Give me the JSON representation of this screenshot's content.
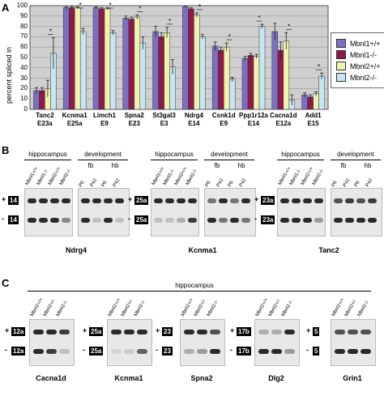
{
  "panel_labels": {
    "a": "A",
    "b": "B",
    "c": "C"
  },
  "chart_data": {
    "type": "bar",
    "ylabel": "percent spliced in",
    "ylim": [
      0,
      100
    ],
    "yticks": [
      "0",
      "10",
      "20",
      "30",
      "40",
      "50",
      "60",
      "70",
      "80",
      "90",
      "100"
    ],
    "categories": [
      "Tanc2 E23a",
      "Kcnma1 E25a",
      "Limch1 E9",
      "Spna2 E23",
      "St3gal3 E3",
      "Ndrg4 E14",
      "Csnk1d E9",
      "Ppp1r12a E14",
      "Cacna1d E12a",
      "Add1 E15"
    ],
    "category_lines": [
      [
        "Tanc2",
        "E23a"
      ],
      [
        "Kcnma1",
        "E25a"
      ],
      [
        "Limch1",
        "E9"
      ],
      [
        "Spna2",
        "E23"
      ],
      [
        "St3gal3",
        "E3"
      ],
      [
        "Ndrg4",
        "E14"
      ],
      [
        "Csnk1d",
        "E9"
      ],
      [
        "Ppp1r12a",
        "E14"
      ],
      [
        "Cacna1d",
        "E12a"
      ],
      [
        "Add1",
        "E15"
      ]
    ],
    "series": [
      {
        "name": "Mbnl1+/+",
        "color": "#7b6fc4",
        "values": [
          18,
          98,
          98,
          88,
          75,
          99,
          61,
          49,
          75,
          14
        ]
      },
      {
        "name": "Mbnl1-/-",
        "color": "#8e1a4a",
        "values": [
          18,
          98,
          97,
          87,
          70,
          97,
          57,
          52,
          57,
          12
        ]
      },
      {
        "name": "Mbnl2+/+",
        "color": "#f2f2b0",
        "values": [
          20,
          98,
          97,
          89,
          74,
          91,
          60,
          51,
          66,
          15
        ]
      },
      {
        "name": "Mbnl2-/-",
        "color": "#c7e6f2",
        "values": [
          54,
          75,
          74,
          64,
          41,
          70,
          29,
          80,
          9,
          32
        ]
      }
    ],
    "errors": [
      [
        3,
        1,
        1,
        2,
        5,
        1,
        4,
        2,
        8,
        2
      ],
      [
        3,
        1,
        1,
        2,
        4,
        1,
        3,
        2,
        8,
        2
      ],
      [
        8,
        1,
        1,
        2,
        5,
        2,
        4,
        2,
        8,
        2
      ],
      [
        15,
        3,
        2,
        6,
        7,
        2,
        2,
        2,
        5,
        3
      ]
    ],
    "significance": [
      "*",
      "*",
      "*",
      "*",
      "*",
      "*",
      "*",
      "*",
      "*",
      "*"
    ],
    "grid": true,
    "legend_position": "right"
  },
  "panel_b": {
    "blots": [
      {
        "gene": "Ndrg4",
        "top_label": "14",
        "bottom_label": "14",
        "hippo_header": "hippocampus",
        "dev_header": "development",
        "hippo_lanes": [
          "Mbnl1+/+",
          "Mbnl1-/-",
          "Mbnl2+/+",
          "Mbnl2-/-"
        ],
        "dev_groups": [
          "fb",
          "hb"
        ],
        "dev_lanes": [
          "P6",
          "P42",
          "P6",
          "P42"
        ]
      },
      {
        "gene": "Kcnma1",
        "top_label": "25a",
        "bottom_label": "25a",
        "hippo_header": "hippocampus",
        "dev_header": "development",
        "hippo_lanes": [
          "Mbnl1+/+",
          "Mbnl1-/-",
          "Mbnl2+/+",
          "Mbnl2-/-"
        ],
        "dev_groups": [
          "fb",
          "hb"
        ],
        "dev_lanes": [
          "P6",
          "P42",
          "P6",
          "P42"
        ]
      },
      {
        "gene": "Tanc2",
        "top_label": "23a",
        "bottom_label": "23a",
        "hippo_header": "hippocampus",
        "dev_header": "development",
        "hippo_lanes": [
          "Mbnl1+/+",
          "Mbnl1-/-",
          "Mbnl2+/+",
          "Mbnl2-/-"
        ],
        "dev_groups": [
          "fb",
          "hb"
        ],
        "dev_lanes": [
          "P6",
          "P42",
          "P6",
          "P42"
        ]
      }
    ],
    "plus": "+",
    "minus": "-"
  },
  "panel_c": {
    "header": "hippocampus",
    "lanes": [
      "Mbnl2+/+",
      "Mbnl2+/-",
      "Mbnl2-/-"
    ],
    "blots": [
      {
        "gene": "Cacna1d",
        "top_label": "12a",
        "bottom_label": "12a"
      },
      {
        "gene": "Kcnma1",
        "top_label": "25a",
        "bottom_label": "25a"
      },
      {
        "gene": "Spna2",
        "top_label": "23",
        "bottom_label": "23"
      },
      {
        "gene": "Dlg2",
        "top_label": "17b",
        "bottom_label": "17b"
      },
      {
        "gene": "Grin1",
        "top_label": "5",
        "bottom_label": "5"
      }
    ]
  }
}
